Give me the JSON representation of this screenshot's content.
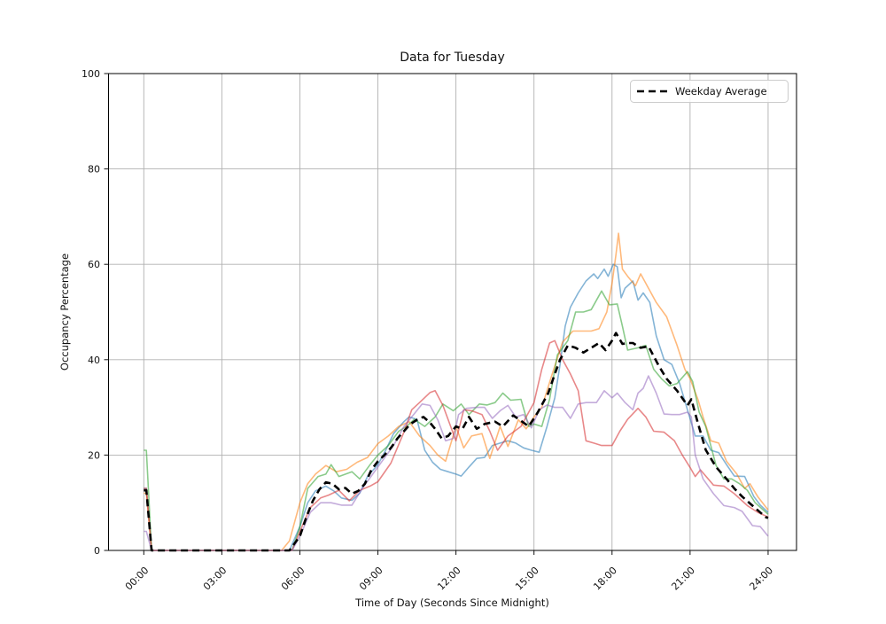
{
  "title": "Data for Tuesday",
  "xlabel": "Time of Day (Seconds Since Midnight)",
  "ylabel": "Occupancy Percentage",
  "legend": {
    "position": "upper-right",
    "label": "Weekday Average"
  },
  "chart_data": {
    "type": "line",
    "title": "Data for Tuesday",
    "xlabel": "Time of Day (Seconds Since Midnight)",
    "ylabel": "Occupancy Percentage",
    "grid": true,
    "ylim": [
      0,
      100
    ],
    "xlim_hours": [
      -1.35,
      25.1
    ],
    "y_ticks": [
      0,
      20,
      40,
      60,
      80,
      100
    ],
    "x_tick_hours": [
      0,
      3,
      6,
      9,
      12,
      15,
      18,
      21,
      24
    ],
    "x_tick_labels": [
      "00:00",
      "03:00",
      "06:00",
      "09:00",
      "12:00",
      "15:00",
      "18:00",
      "21:00",
      "24:00"
    ],
    "legend_position": "upper right",
    "series": [
      {
        "id": "series-1",
        "name": "",
        "color": "#1f77b4",
        "opacity": 0.55,
        "width": 1.6,
        "dash": "",
        "x": [
          0,
          0.1,
          0.3,
          1,
          2,
          3,
          4,
          5,
          5.6,
          6,
          6.3,
          6.6,
          7,
          7.3,
          7.6,
          8,
          8.3,
          8.6,
          9,
          9.3,
          9.6,
          10,
          10.2,
          10.5,
          10.8,
          11.1,
          11.4,
          11.7,
          12,
          12.2,
          12.5,
          12.8,
          13.1,
          13.4,
          13.7,
          14,
          14.3,
          14.6,
          14.9,
          15.2,
          15.5,
          15.8,
          16,
          16.2,
          16.4,
          16.7,
          17,
          17.3,
          17.45,
          17.7,
          17.85,
          18.05,
          18.2,
          18.35,
          18.5,
          18.8,
          19,
          19.2,
          19.45,
          19.7,
          20,
          20.3,
          20.6,
          20.9,
          21.2,
          21.5,
          21.8,
          22.1,
          22.4,
          22.7,
          23.1,
          23.45,
          23.7,
          24
        ],
        "y": [
          13,
          13,
          0,
          0,
          0,
          0,
          0,
          0,
          0,
          5,
          10,
          12.5,
          13.5,
          12.5,
          11,
          10.5,
          12,
          15.5,
          18,
          21,
          24.5,
          27,
          28,
          27.5,
          21,
          18.5,
          17,
          16.5,
          16,
          15.6,
          17.5,
          19.3,
          19.5,
          22,
          22.5,
          23,
          22.5,
          21.5,
          21,
          20.6,
          26,
          32,
          39,
          47,
          51,
          54,
          56.5,
          58,
          57,
          59,
          57.5,
          60,
          59.5,
          53,
          55,
          56.5,
          52.5,
          54,
          52,
          45,
          40,
          39,
          35,
          29.5,
          24,
          24,
          21,
          20.5,
          18,
          15.6,
          15.5,
          11.3,
          9.5,
          8
        ]
      },
      {
        "id": "series-2",
        "name": "",
        "color": "#ff7f0e",
        "opacity": 0.55,
        "width": 1.6,
        "dash": "",
        "x": [
          0,
          0.1,
          0.3,
          1,
          2,
          3,
          4,
          5,
          5.3,
          5.6,
          6,
          6.3,
          6.6,
          7,
          7.4,
          7.8,
          8.2,
          8.6,
          9,
          9.4,
          9.8,
          10.2,
          10.6,
          11,
          11.3,
          11.6,
          12,
          12.3,
          12.6,
          13,
          13.3,
          13.7,
          14,
          14.4,
          14.7,
          15,
          15.3,
          15.7,
          16.1,
          16.5,
          16.9,
          17.2,
          17.5,
          17.8,
          18,
          18.15,
          18.25,
          18.4,
          18.6,
          18.9,
          19.1,
          19.4,
          19.7,
          20.1,
          20.5,
          20.8,
          21,
          21.3,
          21.5,
          21.8,
          22.1,
          22.4,
          22.8,
          23.1,
          23.3,
          23.6,
          24
        ],
        "y": [
          12,
          12,
          0,
          0,
          0,
          0,
          0,
          0,
          0,
          2,
          10,
          14,
          16,
          17.8,
          16.5,
          17,
          18.5,
          19.5,
          22.4,
          24,
          26,
          27,
          24,
          22,
          20,
          18.7,
          26,
          21.5,
          24,
          24.5,
          19.3,
          26,
          21.8,
          27.4,
          25.5,
          28,
          30,
          37,
          43.7,
          46,
          46,
          46,
          46.5,
          50,
          56,
          62,
          66.5,
          59,
          57.5,
          55.5,
          58,
          55,
          52,
          49,
          43,
          38,
          36,
          31.7,
          28,
          23,
          22.5,
          18.7,
          16,
          13,
          14,
          11.3,
          8.5
        ]
      },
      {
        "id": "series-3",
        "name": "",
        "color": "#2ca02c",
        "opacity": 0.55,
        "width": 1.6,
        "dash": "",
        "x": [
          0,
          0.1,
          0.3,
          1,
          2,
          3,
          4,
          5,
          5.7,
          6,
          6.3,
          6.7,
          7,
          7.2,
          7.5,
          8,
          8.3,
          8.7,
          9,
          9.4,
          9.8,
          10.1,
          10.4,
          10.8,
          11.2,
          11.5,
          11.9,
          12.2,
          12.5,
          12.9,
          13.2,
          13.5,
          13.8,
          14.1,
          14.5,
          14.8,
          15,
          15.3,
          15.6,
          15.9,
          16.3,
          16.6,
          16.9,
          17.2,
          17.6,
          17.9,
          18.2,
          18.4,
          18.6,
          19,
          19.3,
          19.6,
          19.9,
          20.2,
          20.5,
          20.9,
          21.1,
          21.35,
          21.6,
          22,
          22.3,
          22.6,
          22.9,
          23.2,
          23.5,
          24
        ],
        "y": [
          21,
          21,
          0,
          0,
          0,
          0,
          0,
          0,
          0,
          5,
          13,
          15.5,
          16,
          18,
          15.5,
          16.5,
          15,
          18,
          20,
          22,
          25,
          26,
          27.5,
          26,
          28,
          30.7,
          29.3,
          30.7,
          28.5,
          30.7,
          30.5,
          31,
          33,
          31.5,
          31.7,
          26,
          26.5,
          26,
          31.7,
          41,
          44,
          50,
          50,
          50.5,
          54.4,
          51.5,
          51.7,
          47,
          42,
          42.5,
          43,
          38,
          36,
          34.5,
          35,
          37.5,
          35.4,
          29,
          26,
          17.8,
          15,
          15,
          14,
          12.6,
          10,
          7.6
        ]
      },
      {
        "id": "series-4",
        "name": "",
        "color": "#d62728",
        "opacity": 0.55,
        "width": 1.6,
        "dash": "",
        "x": [
          0,
          0.1,
          0.3,
          1,
          2,
          3,
          4,
          5,
          5.7,
          6,
          6.4,
          6.8,
          7.1,
          7.5,
          7.9,
          8.3,
          8.7,
          9,
          9.5,
          10,
          10.3,
          10.6,
          11,
          11.2,
          11.5,
          12,
          12.3,
          12.6,
          13,
          13.3,
          13.6,
          14,
          14.5,
          15,
          15.3,
          15.6,
          15.8,
          16.1,
          16.4,
          16.7,
          17,
          17.3,
          17.6,
          18,
          18.3,
          18.6,
          19,
          19.3,
          19.6,
          20,
          20.4,
          20.7,
          21,
          21.2,
          21.4,
          21.9,
          22.3,
          22.7,
          23.2,
          23.6,
          24
        ],
        "y": [
          13,
          13,
          0,
          0,
          0,
          0,
          0,
          0,
          0,
          4,
          9,
          11,
          11.6,
          12.6,
          10.4,
          12.6,
          13.5,
          14.4,
          18.3,
          24.8,
          29.5,
          31,
          33.1,
          33.5,
          30.4,
          23,
          29.5,
          29.3,
          28.5,
          25,
          21,
          24,
          26,
          31,
          38,
          43.5,
          44,
          40,
          37,
          33.5,
          23,
          22.5,
          22,
          22,
          25,
          27.5,
          29.8,
          28,
          25,
          24.8,
          23,
          20,
          17.4,
          15.5,
          16.9,
          13.7,
          13.5,
          11.9,
          9.4,
          8,
          7
        ]
      },
      {
        "id": "series-5",
        "name": "",
        "color": "#9467bd",
        "opacity": 0.55,
        "width": 1.6,
        "dash": "",
        "x": [
          0,
          0.1,
          0.3,
          1,
          2,
          3,
          4,
          5,
          5.7,
          6,
          6.4,
          6.8,
          7.2,
          7.6,
          8,
          8.4,
          8.8,
          9.2,
          9.6,
          10,
          10.3,
          10.7,
          11,
          11.3,
          11.6,
          11.9,
          12.1,
          12.4,
          12.8,
          13.1,
          13.4,
          13.7,
          14,
          14.3,
          14.6,
          14.9,
          15.2,
          15.5,
          15.8,
          16.1,
          16.4,
          16.7,
          17,
          17.4,
          17.7,
          18,
          18.2,
          18.5,
          18.8,
          19,
          19.2,
          19.4,
          19.7,
          20,
          20.3,
          20.6,
          20.9,
          21.05,
          21.2,
          21.5,
          21.9,
          22.3,
          22.7,
          23,
          23.4,
          23.7,
          24
        ],
        "y": [
          4,
          4,
          0,
          0,
          0,
          0,
          0,
          0,
          0,
          3,
          8,
          10,
          10,
          9.5,
          9.5,
          13,
          16,
          19,
          22,
          26,
          28,
          30.7,
          30.4,
          27.4,
          23,
          23.5,
          28.5,
          29.8,
          30,
          30,
          27.7,
          29.3,
          30.4,
          28,
          28.5,
          25.7,
          29.5,
          30.5,
          30,
          30,
          27.7,
          30.7,
          31,
          31,
          33.5,
          32,
          33,
          31,
          29.5,
          33,
          34,
          36.6,
          33,
          28.6,
          28.5,
          28.5,
          29,
          28,
          20,
          15,
          11.9,
          9.4,
          9,
          8.2,
          5.2,
          5,
          3
        ]
      },
      {
        "id": "weekday-average",
        "name": "Weekday Average",
        "color": "#000000",
        "opacity": 1,
        "width": 2.6,
        "dash": "8 5",
        "x": [
          0,
          0.1,
          0.3,
          1,
          2,
          3,
          4,
          5,
          5.6,
          6,
          6.25,
          6.5,
          6.75,
          7,
          7.25,
          7.5,
          7.75,
          8,
          8.25,
          8.5,
          8.75,
          9,
          9.25,
          9.5,
          9.75,
          10,
          10.25,
          10.5,
          10.75,
          11,
          11.2,
          11.45,
          11.7,
          12,
          12.25,
          12.5,
          12.8,
          13.1,
          13.5,
          13.8,
          14.2,
          14.5,
          14.8,
          15.15,
          15.55,
          15.8,
          16,
          16.3,
          16.6,
          16.9,
          17.2,
          17.5,
          17.75,
          18,
          18.15,
          18.4,
          18.6,
          18.8,
          19.1,
          19.4,
          19.8,
          20.1,
          20.5,
          20.9,
          21.05,
          21.3,
          21.6,
          22,
          22.4,
          22.7,
          23,
          23.5,
          23.9,
          24
        ],
        "y": [
          12.6,
          12.6,
          0,
          0,
          0,
          0,
          0,
          0,
          0,
          3,
          7,
          10.4,
          12.8,
          14.3,
          14,
          12.8,
          13.1,
          11.9,
          12.5,
          14,
          16.9,
          18.7,
          20,
          21.5,
          23.5,
          25,
          26.5,
          27.4,
          28,
          26.8,
          25.5,
          23.5,
          24,
          26,
          25.5,
          28,
          25.5,
          26.5,
          27,
          26,
          28.3,
          27.2,
          26,
          29,
          33,
          37,
          40,
          43,
          42.5,
          41.5,
          42.5,
          43.5,
          42,
          44,
          45.6,
          43.3,
          43.5,
          43.5,
          42.5,
          42.8,
          38.7,
          36,
          33.5,
          30.4,
          31.7,
          26.7,
          21.1,
          17.5,
          15,
          13,
          11.3,
          8.9,
          7,
          6.8
        ]
      }
    ]
  }
}
